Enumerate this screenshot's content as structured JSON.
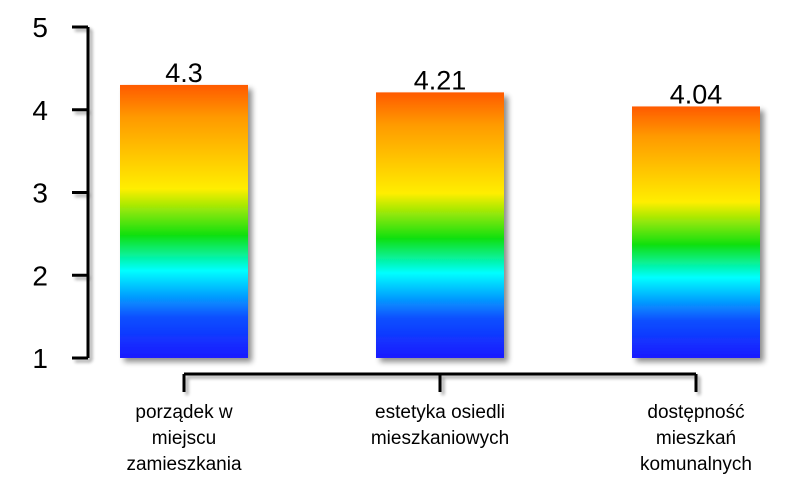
{
  "chart_data": {
    "type": "bar",
    "categories": [
      [
        "porządek w",
        "miejscu",
        "zamieszkania"
      ],
      [
        "estetyka osiedli",
        "mieszkaniowych"
      ],
      [
        "dostępność",
        "mieszkań",
        "komunalnych"
      ]
    ],
    "values": [
      4.3,
      4.21,
      4.04
    ],
    "value_labels": [
      "4.3",
      "4.21",
      "4.04"
    ],
    "ylim": [
      1,
      5
    ],
    "yticks": [
      1,
      2,
      3,
      4,
      5
    ],
    "grid": false,
    "legend": "none",
    "bar_gradient": [
      "#ff5a00",
      "#ff9a00",
      "#ffee00",
      "#10e010",
      "#00ffff",
      "#0a50ff",
      "#1a1aff"
    ]
  }
}
